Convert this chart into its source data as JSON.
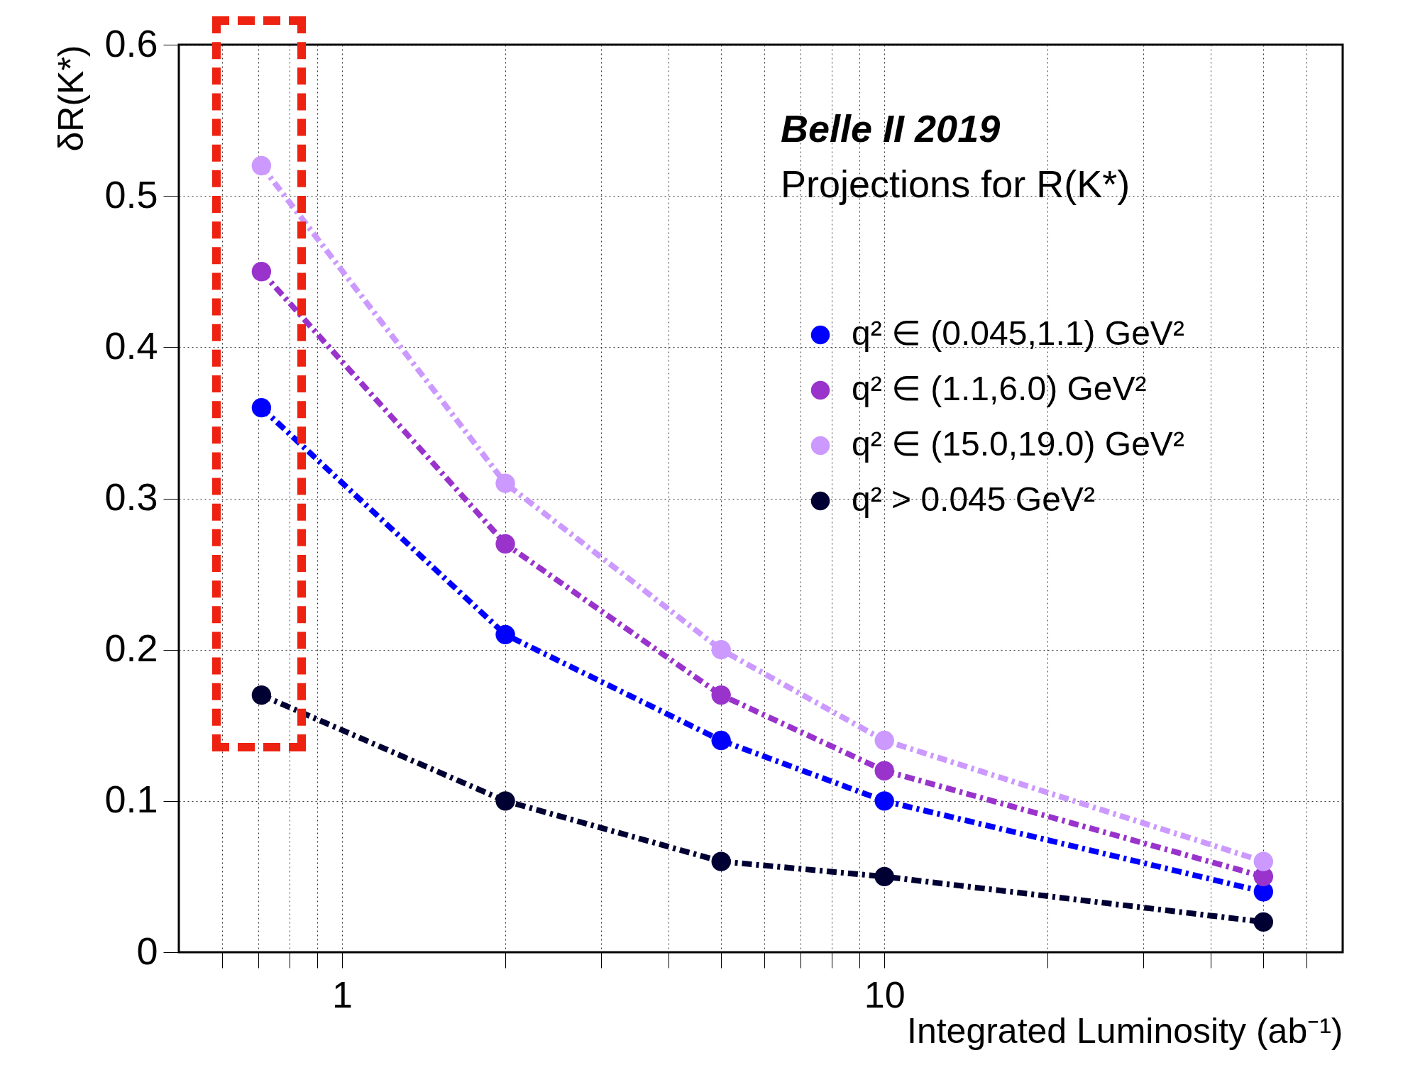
{
  "chart_data": {
    "type": "line",
    "title": null,
    "xlabel": "Integrated Luminosity (ab⁻¹)",
    "ylabel": "δR(K*)",
    "annotations": [
      "Belle II 2019",
      "Projections for R(K*)"
    ],
    "x": [
      0.71,
      2,
      5,
      10,
      50
    ],
    "series": [
      {
        "name": "q² ∈ (0.045,1.1) GeV²",
        "color": "#0000ff",
        "values": [
          0.36,
          0.21,
          0.14,
          0.1,
          0.04
        ]
      },
      {
        "name": "q² ∈ (1.1,6.0) GeV²",
        "color": "#9933cc",
        "values": [
          0.45,
          0.27,
          0.17,
          0.12,
          0.05
        ]
      },
      {
        "name": "q² ∈ (15.0,19.0) GeV²",
        "color": "#cc99ff",
        "values": [
          0.52,
          0.31,
          0.2,
          0.14,
          0.06
        ]
      },
      {
        "name": "q² > 0.045 GeV²",
        "color": "#000033",
        "values": [
          0.17,
          0.1,
          0.06,
          0.05,
          0.02
        ]
      }
    ],
    "log": "x",
    "xlim": [
      0.5,
      70
    ],
    "xticks": [
      {
        "value": 0.6,
        "label": null
      },
      {
        "value": 0.7,
        "label": null
      },
      {
        "value": 0.8,
        "label": null
      },
      {
        "value": 0.9,
        "label": null
      },
      1,
      {
        "value": 2,
        "label": null
      },
      {
        "value": 3,
        "label": null
      },
      {
        "value": 4,
        "label": null
      },
      {
        "value": 5,
        "label": null
      },
      {
        "value": 6,
        "label": null
      },
      {
        "value": 7,
        "label": null
      },
      {
        "value": 8,
        "label": null
      },
      {
        "value": 9,
        "label": null
      },
      10,
      {
        "value": 20,
        "label": null
      },
      {
        "value": 30,
        "label": null
      },
      {
        "value": 40,
        "label": null
      },
      {
        "value": 50,
        "label": null
      },
      {
        "value": 60,
        "label": null
      }
    ],
    "ylim": [
      0,
      0.6
    ],
    "yticks": [
      0,
      0.1,
      0.2,
      0.3,
      0.4,
      0.5,
      0.6
    ],
    "grid": true,
    "legend": "top right",
    "marker": "circle",
    "line_style": "dashed"
  }
}
